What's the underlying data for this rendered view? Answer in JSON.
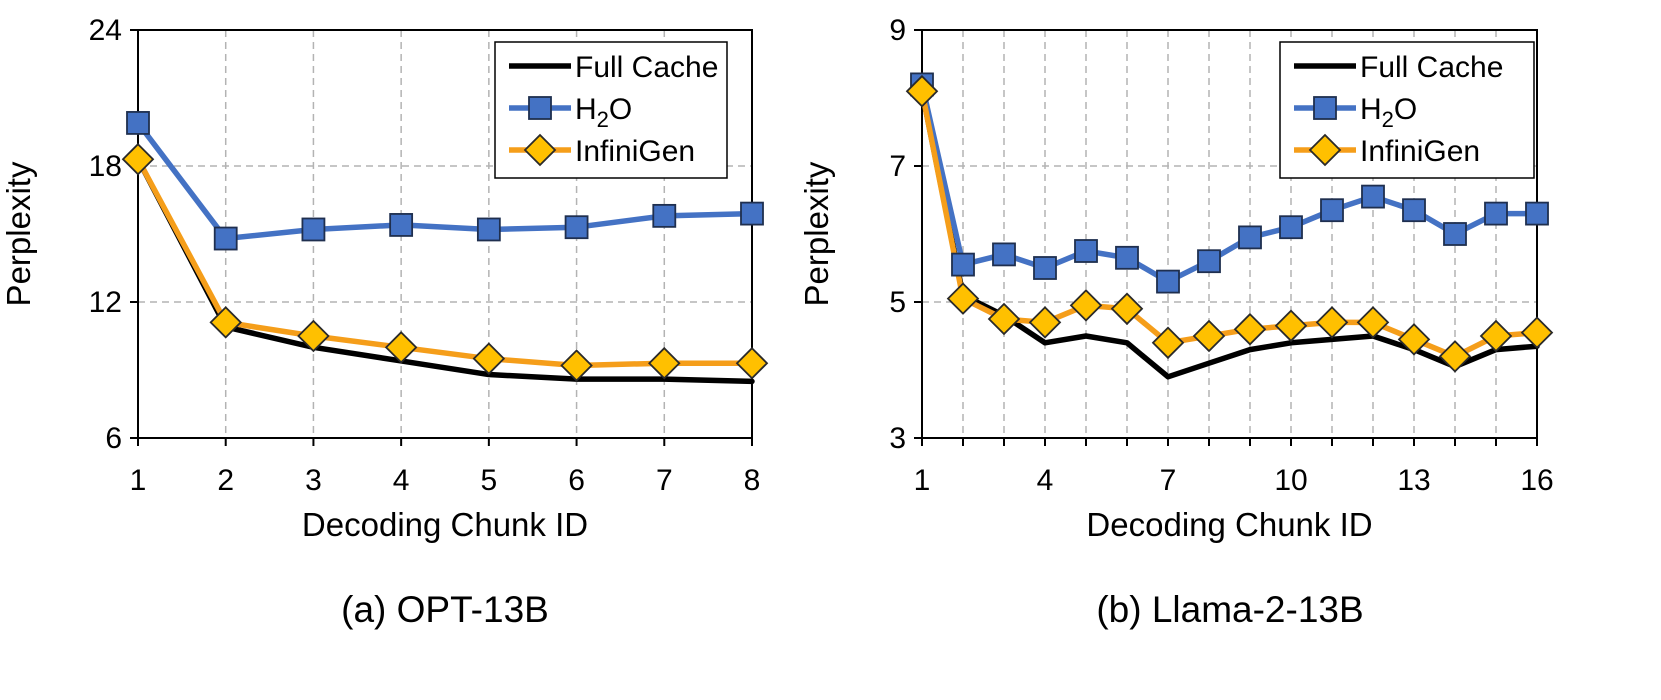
{
  "chart_data": [
    {
      "type": "line",
      "caption": "(a) OPT-13B",
      "xlabel": "Decoding Chunk ID",
      "ylabel": "Perplexity",
      "xlim": [
        1,
        8
      ],
      "ylim": [
        6,
        24
      ],
      "xticks": [
        1,
        2,
        3,
        4,
        5,
        6,
        7,
        8
      ],
      "yticks": [
        6,
        12,
        18,
        24
      ],
      "grid": true,
      "legend_position": "top-right",
      "x": [
        1,
        2,
        3,
        4,
        5,
        6,
        7,
        8
      ],
      "series": [
        {
          "name": "Full Cache",
          "color": "#000000",
          "marker": "none",
          "values": [
            18.3,
            10.9,
            10.0,
            9.4,
            8.8,
            8.6,
            8.6,
            8.5
          ]
        },
        {
          "name": "H2O",
          "color": "#4472C4",
          "marker": "square",
          "values": [
            19.9,
            14.8,
            15.2,
            15.4,
            15.2,
            15.3,
            15.8,
            15.9
          ]
        },
        {
          "name": "InfiniGen",
          "color": "#F59E1A",
          "marker": "diamond",
          "values": [
            18.3,
            11.1,
            10.5,
            10.0,
            9.5,
            9.2,
            9.3,
            9.3
          ]
        }
      ]
    },
    {
      "type": "line",
      "caption": "(b) Llama-2-13B",
      "xlabel": "Decoding Chunk ID",
      "ylabel": "Perplexity",
      "xlim": [
        1,
        16
      ],
      "ylim": [
        3,
        9
      ],
      "xticks": [
        1,
        4,
        7,
        10,
        13,
        16
      ],
      "yticks": [
        3,
        5,
        7,
        9
      ],
      "grid": true,
      "legend_position": "top-right",
      "x": [
        1,
        2,
        3,
        4,
        5,
        6,
        7,
        8,
        9,
        10,
        11,
        12,
        13,
        14,
        15,
        16
      ],
      "series": [
        {
          "name": "Full Cache",
          "color": "#000000",
          "marker": "none",
          "values": [
            8.1,
            5.1,
            4.8,
            4.4,
            4.5,
            4.4,
            3.9,
            4.1,
            4.3,
            4.4,
            4.45,
            4.5,
            4.3,
            4.05,
            4.3,
            4.35
          ]
        },
        {
          "name": "H2O",
          "color": "#4472C4",
          "marker": "square",
          "values": [
            8.2,
            5.55,
            5.7,
            5.5,
            5.75,
            5.65,
            5.3,
            5.6,
            5.95,
            6.1,
            6.35,
            6.55,
            6.35,
            6.0,
            6.3,
            6.3
          ]
        },
        {
          "name": "InfiniGen",
          "color": "#F59E1A",
          "marker": "diamond",
          "values": [
            8.1,
            5.05,
            4.75,
            4.7,
            4.95,
            4.9,
            4.4,
            4.5,
            4.6,
            4.65,
            4.7,
            4.7,
            4.45,
            4.2,
            4.5,
            4.55
          ]
        }
      ]
    }
  ]
}
